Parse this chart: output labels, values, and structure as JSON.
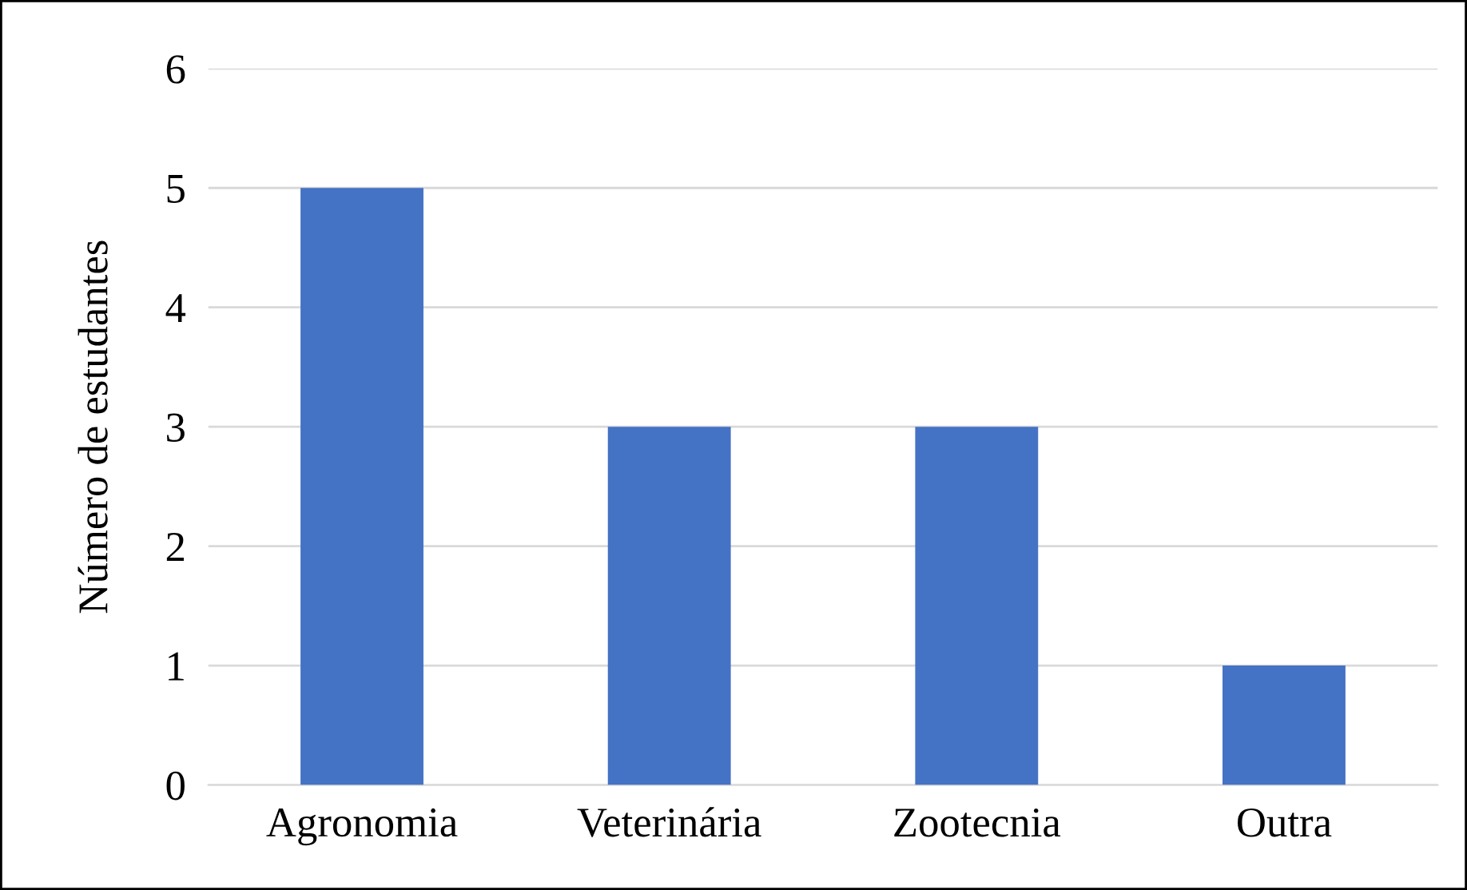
{
  "chart_data": {
    "type": "bar",
    "ylabel": "Número de estudantes",
    "categories": [
      "Agronomia",
      "Veterinária",
      "Zootecnia",
      "Outra"
    ],
    "values": [
      5,
      3,
      3,
      1
    ],
    "color": "#4472c4",
    "ylim": [
      0,
      6
    ],
    "yticks": [
      0,
      1,
      2,
      3,
      4,
      5,
      6
    ],
    "grid": "y",
    "legend": false
  }
}
